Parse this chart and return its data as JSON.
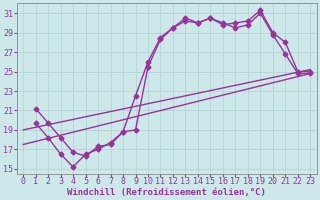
{
  "background_color": "#cce8e8",
  "line_color": "#993399",
  "marker": "D",
  "markersize": 2.5,
  "linewidth": 1.0,
  "xlabel": "Windchill (Refroidissement éolien,°C)",
  "xlabel_fontsize": 6.5,
  "tick_fontsize": 6.0,
  "xlim": [
    -0.5,
    23.5
  ],
  "ylim": [
    14.5,
    32.0
  ],
  "yticks": [
    15,
    17,
    19,
    21,
    23,
    25,
    27,
    29,
    31
  ],
  "xticks": [
    0,
    1,
    2,
    3,
    4,
    5,
    6,
    7,
    8,
    9,
    10,
    11,
    12,
    13,
    14,
    15,
    16,
    17,
    18,
    19,
    20,
    21,
    22,
    23
  ],
  "series1_x": [
    1,
    2,
    3,
    4,
    5,
    6,
    7,
    8,
    9,
    10,
    11,
    12,
    13,
    14,
    15,
    16,
    17,
    18,
    19,
    20,
    21,
    22,
    23
  ],
  "series1_y": [
    21.2,
    19.7,
    18.2,
    16.7,
    16.3,
    17.3,
    17.5,
    18.8,
    19.0,
    25.5,
    28.3,
    29.5,
    30.2,
    30.0,
    30.5,
    29.8,
    30.0,
    30.2,
    31.3,
    29.0,
    28.0,
    25.0,
    25.0
  ],
  "series2_x": [
    1,
    2,
    3,
    4,
    5,
    6,
    7,
    8,
    9,
    10,
    11,
    12,
    13,
    14,
    15,
    16,
    17,
    18,
    19,
    20,
    21,
    22,
    23
  ],
  "series2_y": [
    19.7,
    18.2,
    16.5,
    15.2,
    16.5,
    17.0,
    17.7,
    18.8,
    22.5,
    26.0,
    28.5,
    29.5,
    30.5,
    30.0,
    30.5,
    30.0,
    29.5,
    29.8,
    31.0,
    28.8,
    26.8,
    24.8,
    24.8
  ],
  "series3_x": [
    0,
    23
  ],
  "series3_y": [
    19.0,
    25.2
  ],
  "series4_x": [
    0,
    23
  ],
  "series4_y": [
    17.5,
    24.8
  ],
  "grid_color": "#b0d0d0",
  "label_color": "#993399"
}
